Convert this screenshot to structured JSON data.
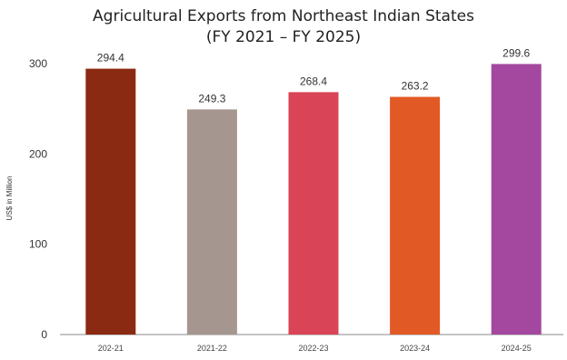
{
  "chart_data": {
    "type": "bar",
    "title_line1": "Agricultural Exports from Northeast Indian States",
    "title_line2": "(FY 2021 – FY 2025)",
    "xlabel": "",
    "ylabel": "US$ in Million",
    "categories": [
      "202-21",
      "2021-22",
      "2022-23",
      "2023-24",
      "2024-25"
    ],
    "values": [
      294.4,
      249.3,
      268.4,
      263.2,
      299.6
    ],
    "value_labels": [
      "294.4",
      "249.3",
      "268.4",
      "263.2",
      "299.6"
    ],
    "colors": [
      "#8b2a12",
      "#a69690",
      "#d94456",
      "#e15a25",
      "#a3479f"
    ],
    "ylim": [
      0,
      300
    ],
    "yticks": [
      0,
      100,
      200,
      300
    ],
    "grid": false,
    "legend": "none"
  }
}
